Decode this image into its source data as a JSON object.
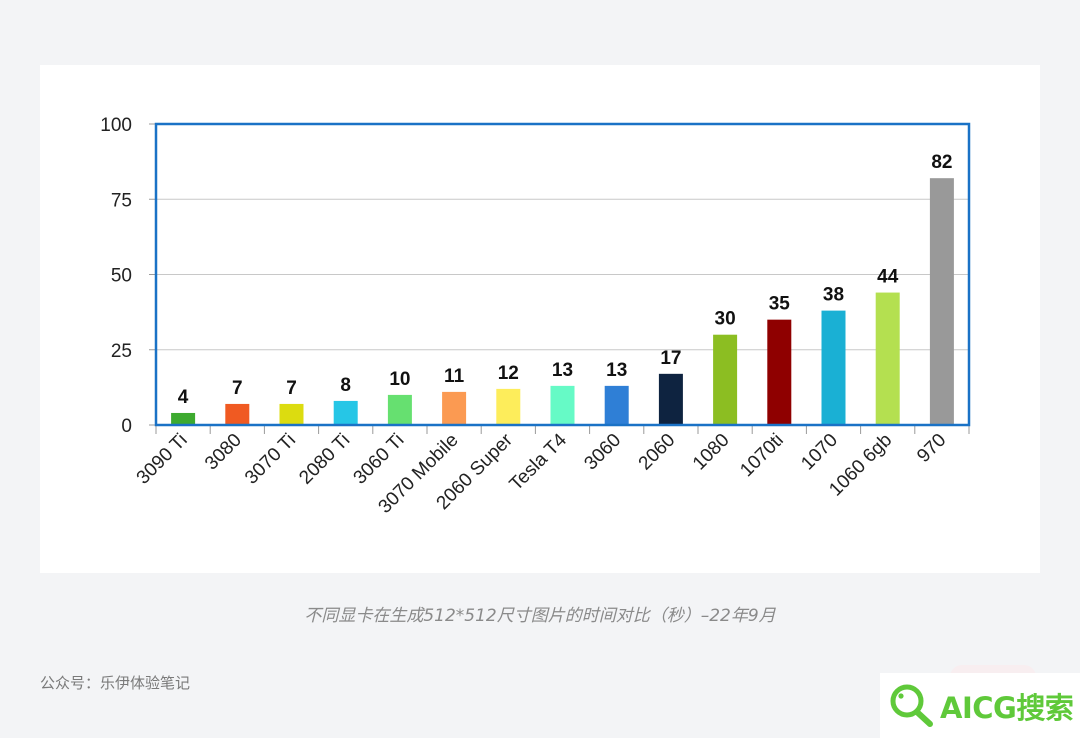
{
  "chart_data": {
    "type": "bar",
    "categories": [
      "3090 Ti",
      "3080",
      "3070 Ti",
      "2080 Ti",
      "3060 Ti",
      "3070 Mobile",
      "2060 Super",
      "Tesla T4",
      "3060",
      "2060",
      "1080",
      "1070ti",
      "1070",
      "1060 6gb",
      "970"
    ],
    "values": [
      4,
      7,
      7,
      8,
      10,
      11,
      12,
      13,
      13,
      17,
      30,
      35,
      38,
      44,
      82
    ],
    "data_labels": [
      "4",
      "7",
      "7",
      "8",
      "10",
      "11",
      "12",
      "13",
      "13",
      "17",
      "30",
      "35",
      "38",
      "44",
      "82"
    ],
    "colors": [
      "#3daa2f",
      "#f05a22",
      "#dcdc10",
      "#26c6e6",
      "#66e070",
      "#fb9a52",
      "#fded5b",
      "#66fac6",
      "#2f7fd6",
      "#0e2340",
      "#8cbe22",
      "#8f0000",
      "#1ab0d4",
      "#b4e050",
      "#999999"
    ],
    "ylim": [
      0,
      100
    ],
    "yticks": [
      "0",
      "25",
      "50",
      "75",
      "100"
    ],
    "grid": true,
    "xlabel": "",
    "ylabel": ""
  },
  "caption": "不同显卡在生成512*512尺寸图片的时间对比（秒）–22年9月",
  "account": "公众号：乐伊体验笔记",
  "watermark": {
    "text": "AICG搜索",
    "icon": "magnifier-icon",
    "color": "#5fc93a"
  }
}
